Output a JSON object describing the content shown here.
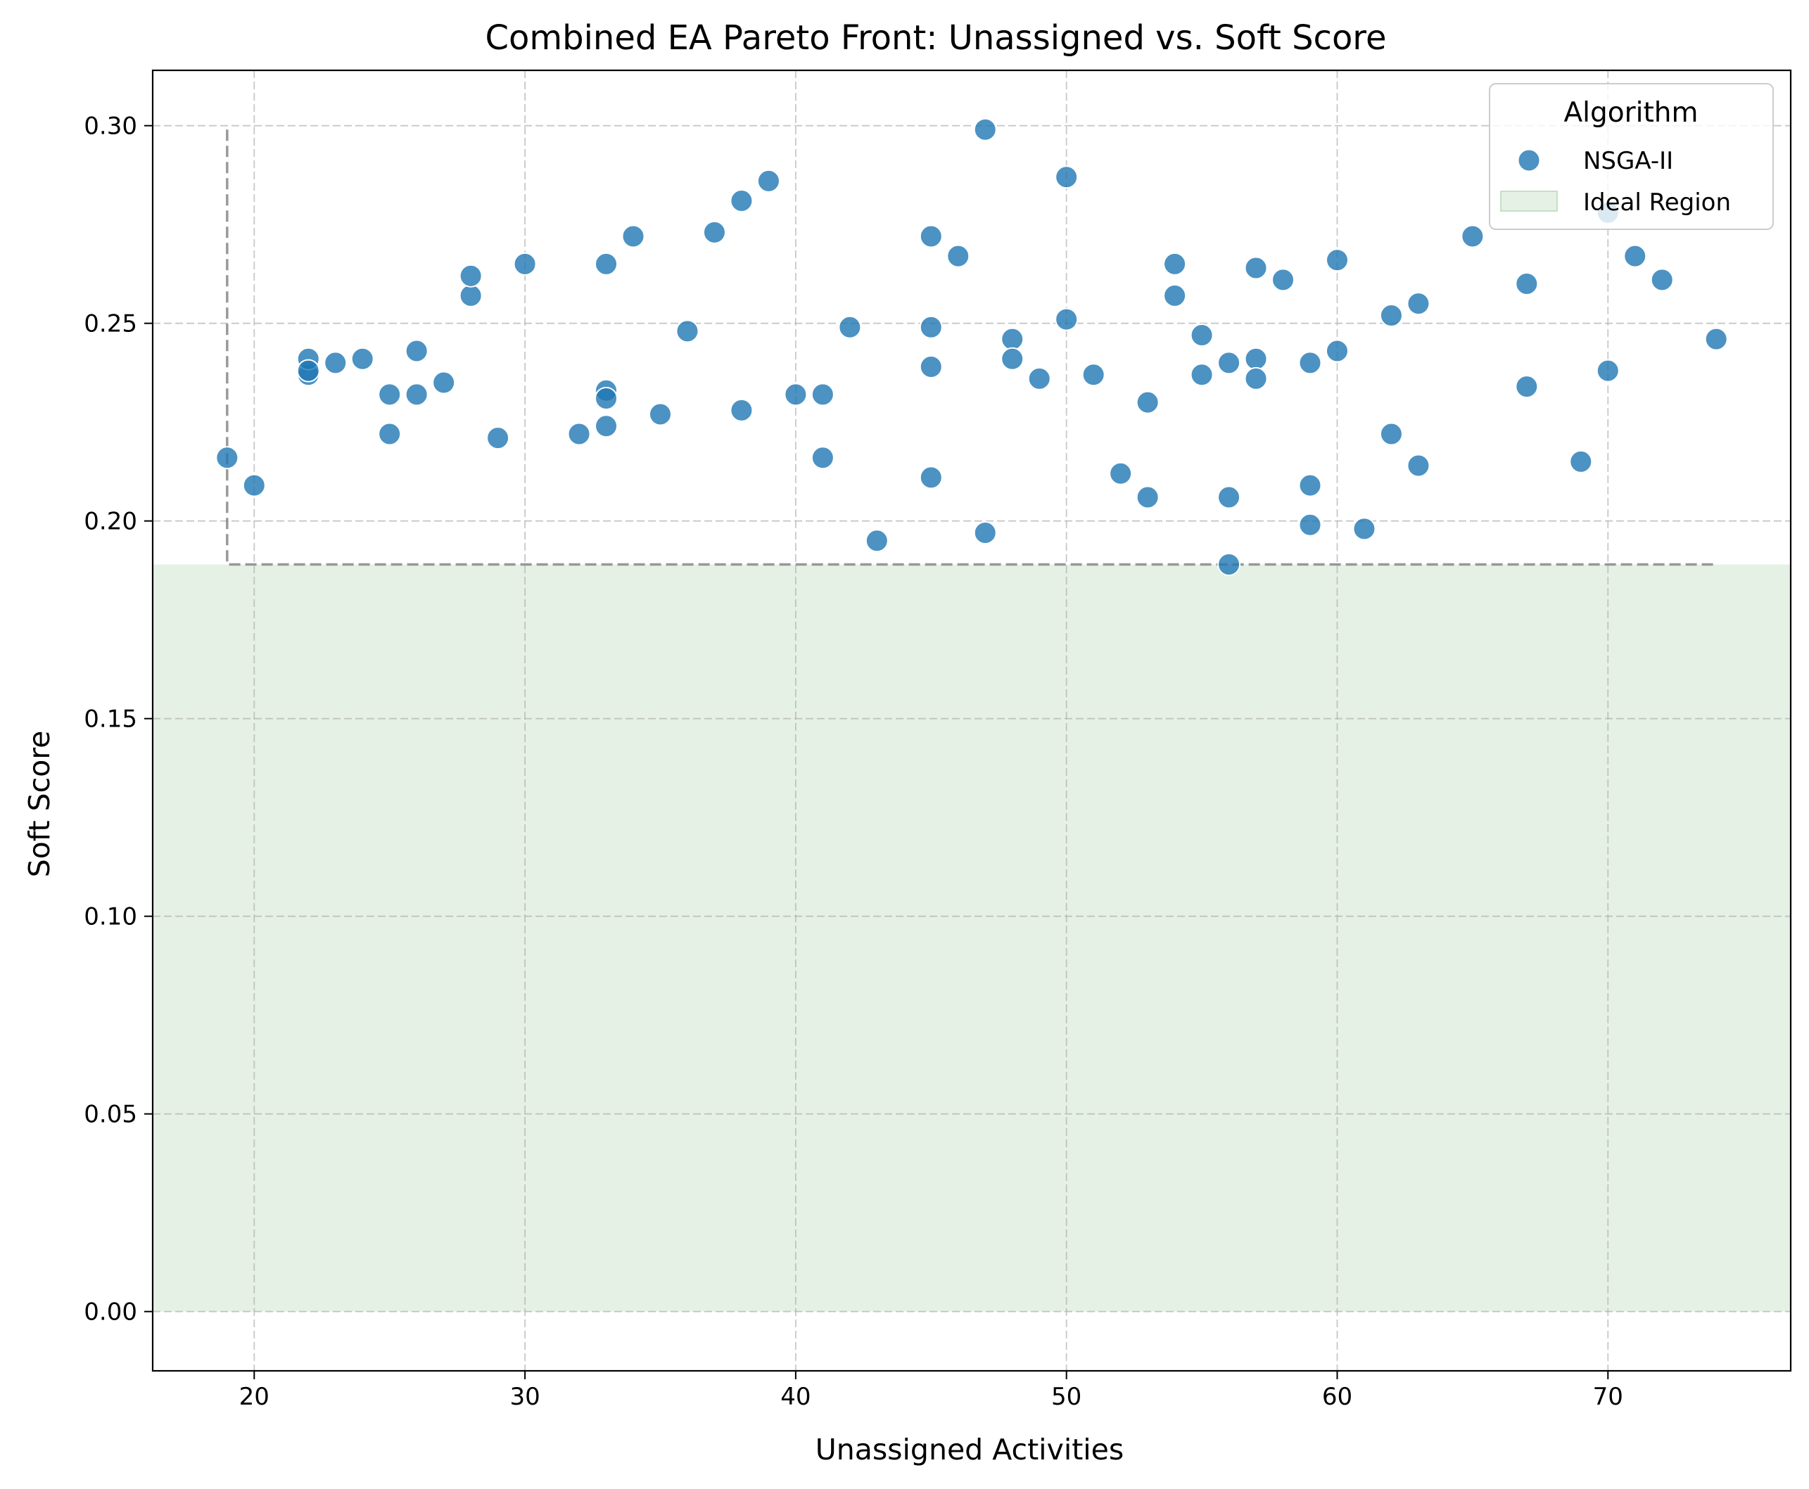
{
  "chart_data": {
    "type": "scatter",
    "title": "Combined EA Pareto Front: Unassigned vs. Soft Score",
    "xlabel": "Unassigned Activities",
    "ylabel": "Soft Score",
    "xlim": [
      16.25,
      76.75
    ],
    "ylim": [
      -0.015,
      0.314
    ],
    "xticks": [
      20,
      30,
      40,
      50,
      60,
      70
    ],
    "yticks": [
      0.0,
      0.05,
      0.1,
      0.15,
      0.2,
      0.25,
      0.3
    ],
    "xtick_labels": [
      "20",
      "30",
      "40",
      "50",
      "60",
      "70"
    ],
    "ytick_labels": [
      "0.00",
      "0.05",
      "0.10",
      "0.15",
      "0.20",
      "0.25",
      "0.30"
    ],
    "grid": true,
    "legend": {
      "title": "Algorithm",
      "position": "top-right",
      "entries": [
        "NSGA-II",
        "Ideal Region"
      ]
    },
    "ideal_region": {
      "label": "Ideal Region",
      "y_from": 0.0,
      "y_to": 0.189,
      "color": "#cfe5cf"
    },
    "pareto_front_line": {
      "style": "dashed",
      "color": "#808080",
      "x": [
        19,
        19,
        74
      ],
      "y": [
        0.299,
        0.189,
        0.189
      ]
    },
    "series": [
      {
        "name": "NSGA-II",
        "color": "#1f77b4",
        "points": [
          [
            19,
            0.216
          ],
          [
            20,
            0.209
          ],
          [
            22,
            0.237
          ],
          [
            22,
            0.241
          ],
          [
            22,
            0.238
          ],
          [
            23,
            0.24
          ],
          [
            24,
            0.241
          ],
          [
            25,
            0.232
          ],
          [
            25,
            0.222
          ],
          [
            26,
            0.243
          ],
          [
            26,
            0.232
          ],
          [
            27,
            0.235
          ],
          [
            28,
            0.257
          ],
          [
            28,
            0.262
          ],
          [
            29,
            0.221
          ],
          [
            30,
            0.265
          ],
          [
            32,
            0.222
          ],
          [
            33,
            0.265
          ],
          [
            33,
            0.233
          ],
          [
            33,
            0.231
          ],
          [
            33,
            0.224
          ],
          [
            34,
            0.272
          ],
          [
            35,
            0.227
          ],
          [
            36,
            0.248
          ],
          [
            37,
            0.273
          ],
          [
            38,
            0.281
          ],
          [
            38,
            0.228
          ],
          [
            39,
            0.286
          ],
          [
            40,
            0.232
          ],
          [
            41,
            0.232
          ],
          [
            41,
            0.216
          ],
          [
            42,
            0.249
          ],
          [
            43,
            0.195
          ],
          [
            45,
            0.272
          ],
          [
            45,
            0.249
          ],
          [
            45,
            0.239
          ],
          [
            45,
            0.211
          ],
          [
            46,
            0.267
          ],
          [
            47,
            0.299
          ],
          [
            47,
            0.197
          ],
          [
            48,
            0.246
          ],
          [
            48,
            0.241
          ],
          [
            49,
            0.236
          ],
          [
            50,
            0.287
          ],
          [
            50,
            0.251
          ],
          [
            51,
            0.237
          ],
          [
            52,
            0.212
          ],
          [
            53,
            0.23
          ],
          [
            53,
            0.206
          ],
          [
            54,
            0.265
          ],
          [
            54,
            0.257
          ],
          [
            55,
            0.247
          ],
          [
            55,
            0.237
          ],
          [
            56,
            0.24
          ],
          [
            56,
            0.206
          ],
          [
            56,
            0.189
          ],
          [
            57,
            0.264
          ],
          [
            57,
            0.241
          ],
          [
            57,
            0.236
          ],
          [
            58,
            0.261
          ],
          [
            59,
            0.24
          ],
          [
            59,
            0.209
          ],
          [
            59,
            0.199
          ],
          [
            60,
            0.266
          ],
          [
            60,
            0.243
          ],
          [
            61,
            0.198
          ],
          [
            62,
            0.252
          ],
          [
            62,
            0.222
          ],
          [
            63,
            0.255
          ],
          [
            63,
            0.214
          ],
          [
            65,
            0.272
          ],
          [
            67,
            0.26
          ],
          [
            67,
            0.234
          ],
          [
            69,
            0.215
          ],
          [
            70,
            0.278
          ],
          [
            70,
            0.238
          ],
          [
            71,
            0.267
          ],
          [
            72,
            0.261
          ],
          [
            74,
            0.246
          ]
        ]
      }
    ]
  }
}
